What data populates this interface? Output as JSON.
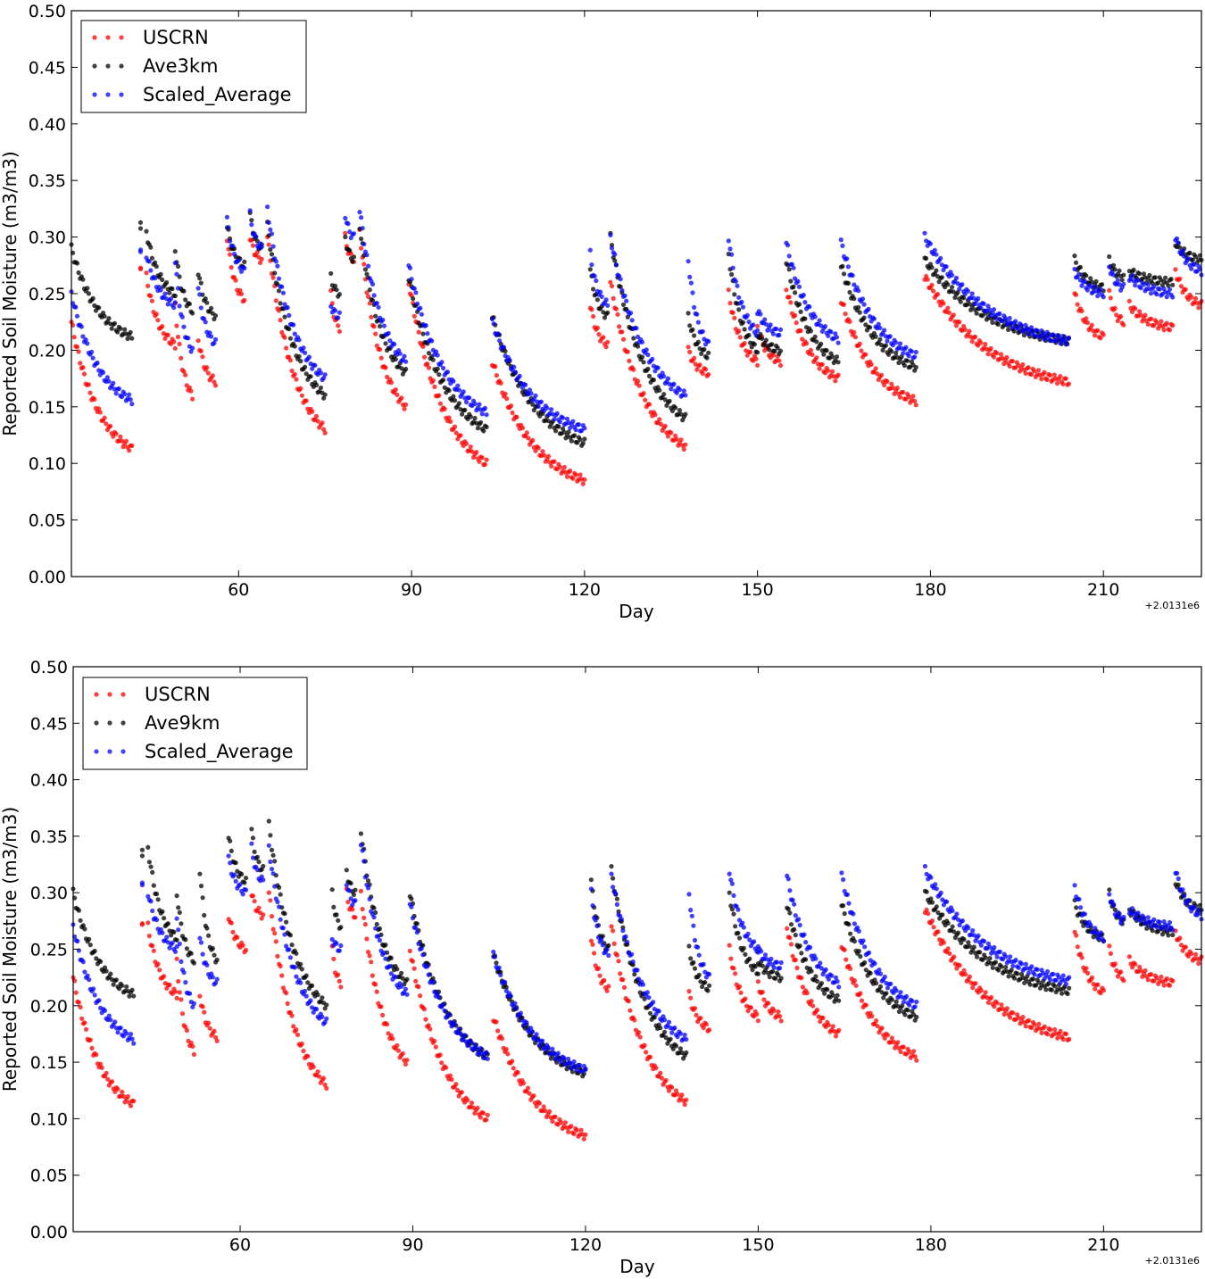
{
  "chart_data": [
    {
      "type": "scatter",
      "xlabel": "Day",
      "ylabel": "Reported Soil Moisture (m3/m3)",
      "x_offset_label": "+2.0131e6",
      "xlim": [
        31,
        227
      ],
      "ylim": [
        0.0,
        0.5
      ],
      "x_ticks": [
        60,
        90,
        120,
        150,
        180,
        210
      ],
      "x_tick_labels": [
        "60",
        "90",
        "120",
        "150",
        "180",
        "210"
      ],
      "y_ticks": [
        0.0,
        0.05,
        0.1,
        0.15,
        0.2,
        0.25,
        0.3,
        0.35,
        0.4,
        0.45,
        0.5
      ],
      "y_tick_labels": [
        "0.00",
        "0.05",
        "0.10",
        "0.15",
        "0.20",
        "0.25",
        "0.30",
        "0.35",
        "0.40",
        "0.45",
        "0.50"
      ],
      "grid": false,
      "legend_position": "top-left",
      "segments": [
        {
          "x": [
            31.0,
            41.5
          ],
          "USCRN": [
            0.225,
            0.113
          ],
          "Ave3km": [
            0.29,
            0.212
          ],
          "Scaled_Average": [
            0.25,
            0.156
          ]
        },
        {
          "x": [
            43.0,
            43.0
          ],
          "USCRN": [
            0.27,
            0.27
          ],
          "Ave3km": [
            0.31,
            0.31
          ],
          "Scaled_Average": [
            0.29,
            0.29
          ]
        },
        {
          "x": [
            44.0,
            49.0
          ],
          "USCRN": [
            0.265,
            0.205
          ],
          "Ave3km": [
            0.305,
            0.25
          ],
          "Scaled_Average": [
            0.285,
            0.24
          ]
        },
        {
          "x": [
            49.0,
            52.0
          ],
          "USCRN": [
            0.24,
            0.16
          ],
          "Ave3km": [
            0.29,
            0.235
          ],
          "Scaled_Average": [
            0.28,
            0.2
          ]
        },
        {
          "x": [
            53.0,
            56.0
          ],
          "USCRN": [
            0.21,
            0.172
          ],
          "Ave3km": [
            0.27,
            0.23
          ],
          "Scaled_Average": [
            0.255,
            0.206
          ]
        },
        {
          "x": [
            58.0,
            61.0
          ],
          "USCRN": [
            0.3,
            0.245
          ],
          "Ave3km": [
            0.31,
            0.275
          ],
          "Scaled_Average": [
            0.315,
            0.27
          ]
        },
        {
          "x": [
            62.0,
            64.0
          ],
          "USCRN": [
            0.3,
            0.28
          ],
          "Ave3km": [
            0.32,
            0.29
          ],
          "Scaled_Average": [
            0.32,
            0.29
          ]
        },
        {
          "x": [
            65.0,
            75.0
          ],
          "USCRN": [
            0.3,
            0.13
          ],
          "Ave3km": [
            0.31,
            0.16
          ],
          "Scaled_Average": [
            0.325,
            0.175
          ]
        },
        {
          "x": [
            76.0,
            77.5
          ],
          "USCRN": [
            0.25,
            0.22
          ],
          "Ave3km": [
            0.265,
            0.25
          ],
          "Scaled_Average": [
            0.24,
            0.23
          ]
        },
        {
          "x": [
            78.5,
            80.0
          ],
          "USCRN": [
            0.3,
            0.28
          ],
          "Ave3km": [
            0.3,
            0.28
          ],
          "Scaled_Average": [
            0.32,
            0.3
          ]
        },
        {
          "x": [
            81.0,
            89.0
          ],
          "USCRN": [
            0.305,
            0.15
          ],
          "Ave3km": [
            0.31,
            0.18
          ],
          "Scaled_Average": [
            0.325,
            0.19
          ]
        },
        {
          "x": [
            89.5,
            103.0
          ],
          "USCRN": [
            0.26,
            0.1
          ],
          "Ave3km": [
            0.265,
            0.13
          ],
          "Scaled_Average": [
            0.275,
            0.145
          ]
        },
        {
          "x": [
            104.0,
            120.0
          ],
          "USCRN": [
            0.19,
            0.085
          ],
          "Ave3km": [
            0.23,
            0.118
          ],
          "Scaled_Average": [
            0.225,
            0.13
          ]
        },
        {
          "x": [
            121.0,
            124.0
          ],
          "USCRN": [
            0.24,
            0.205
          ],
          "Ave3km": [
            0.27,
            0.23
          ],
          "Scaled_Average": [
            0.285,
            0.24
          ]
        },
        {
          "x": [
            124.5,
            137.5
          ],
          "USCRN": [
            0.26,
            0.115
          ],
          "Ave3km": [
            0.3,
            0.14
          ],
          "Scaled_Average": [
            0.3,
            0.16
          ]
        },
        {
          "x": [
            138.0,
            141.5
          ],
          "USCRN": [
            0.2,
            0.18
          ],
          "Ave3km": [
            0.23,
            0.195
          ],
          "Scaled_Average": [
            0.28,
            0.205
          ]
        },
        {
          "x": [
            145.0,
            150.0
          ],
          "USCRN": [
            0.25,
            0.19
          ],
          "Ave3km": [
            0.285,
            0.2
          ],
          "Scaled_Average": [
            0.3,
            0.215
          ]
        },
        {
          "x": [
            150.0,
            154.0
          ],
          "USCRN": [
            0.22,
            0.19
          ],
          "Ave3km": [
            0.215,
            0.2
          ],
          "Scaled_Average": [
            0.235,
            0.215
          ]
        },
        {
          "x": [
            155.0,
            164.0
          ],
          "USCRN": [
            0.255,
            0.175
          ],
          "Ave3km": [
            0.28,
            0.19
          ],
          "Scaled_Average": [
            0.295,
            0.21
          ]
        },
        {
          "x": [
            164.5,
            177.5
          ],
          "USCRN": [
            0.245,
            0.155
          ],
          "Ave3km": [
            0.275,
            0.185
          ],
          "Scaled_Average": [
            0.295,
            0.195
          ]
        },
        {
          "x": [
            179.0,
            204.0
          ],
          "USCRN": [
            0.265,
            0.172
          ],
          "Ave3km": [
            0.28,
            0.208
          ],
          "Scaled_Average": [
            0.3,
            0.208
          ]
        },
        {
          "x": [
            205.0,
            210.0
          ],
          "USCRN": [
            0.25,
            0.212
          ],
          "Ave3km": [
            0.28,
            0.255
          ],
          "Scaled_Average": [
            0.27,
            0.25
          ]
        },
        {
          "x": [
            211.0,
            213.5
          ],
          "USCRN": [
            0.25,
            0.225
          ],
          "Ave3km": [
            0.28,
            0.265
          ],
          "Scaled_Average": [
            0.275,
            0.255
          ]
        },
        {
          "x": [
            214.5,
            222.0
          ],
          "USCRN": [
            0.24,
            0.22
          ],
          "Ave3km": [
            0.27,
            0.26
          ],
          "Scaled_Average": [
            0.265,
            0.25
          ]
        },
        {
          "x": [
            222.5,
            227.0
          ],
          "USCRN": [
            0.27,
            0.24
          ],
          "Ave3km": [
            0.295,
            0.28
          ],
          "Scaled_Average": [
            0.3,
            0.27
          ]
        }
      ],
      "series": [
        {
          "name": "USCRN",
          "color": "#ff0000"
        },
        {
          "name": "Ave3km",
          "color": "#000000"
        },
        {
          "name": "Scaled_Average",
          "color": "#0000ff"
        }
      ]
    },
    {
      "type": "scatter",
      "xlabel": "Day",
      "ylabel": "Reported Soil Moisture (m3/m3)",
      "x_offset_label": "+2.0131e6",
      "xlim": [
        31,
        227
      ],
      "ylim": [
        0.0,
        0.5
      ],
      "x_ticks": [
        60,
        90,
        120,
        150,
        180,
        210
      ],
      "x_tick_labels": [
        "60",
        "90",
        "120",
        "150",
        "180",
        "210"
      ],
      "y_ticks": [
        0.0,
        0.05,
        0.1,
        0.15,
        0.2,
        0.25,
        0.3,
        0.35,
        0.4,
        0.45,
        0.5
      ],
      "y_tick_labels": [
        "0.00",
        "0.05",
        "0.10",
        "0.15",
        "0.20",
        "0.25",
        "0.30",
        "0.35",
        "0.40",
        "0.45",
        "0.50"
      ],
      "grid": false,
      "legend_position": "top-left",
      "segments": [
        {
          "x": [
            31.0,
            41.5
          ],
          "USCRN": [
            0.225,
            0.113
          ],
          "Ave9km": [
            0.3,
            0.21
          ],
          "Scaled_Average": [
            0.27,
            0.17
          ]
        },
        {
          "x": [
            43.0,
            43.0
          ],
          "USCRN": [
            0.27,
            0.27
          ],
          "Ave9km": [
            0.335,
            0.335
          ],
          "Scaled_Average": [
            0.31,
            0.31
          ]
        },
        {
          "x": [
            44.0,
            49.0
          ],
          "USCRN": [
            0.27,
            0.21
          ],
          "Ave9km": [
            0.34,
            0.26
          ],
          "Scaled_Average": [
            0.3,
            0.25
          ]
        },
        {
          "x": [
            49.0,
            52.0
          ],
          "USCRN": [
            0.24,
            0.16
          ],
          "Ave9km": [
            0.3,
            0.24
          ],
          "Scaled_Average": [
            0.28,
            0.2
          ]
        },
        {
          "x": [
            53.0,
            56.0
          ],
          "USCRN": [
            0.21,
            0.172
          ],
          "Ave9km": [
            0.32,
            0.24
          ],
          "Scaled_Average": [
            0.26,
            0.22
          ]
        },
        {
          "x": [
            58.0,
            61.0
          ],
          "USCRN": [
            0.28,
            0.25
          ],
          "Ave9km": [
            0.35,
            0.31
          ],
          "Scaled_Average": [
            0.33,
            0.3
          ]
        },
        {
          "x": [
            62.0,
            64.0
          ],
          "USCRN": [
            0.3,
            0.28
          ],
          "Ave9km": [
            0.355,
            0.32
          ],
          "Scaled_Average": [
            0.34,
            0.31
          ]
        },
        {
          "x": [
            65.0,
            75.0
          ],
          "USCRN": [
            0.3,
            0.13
          ],
          "Ave9km": [
            0.36,
            0.2
          ],
          "Scaled_Average": [
            0.34,
            0.185
          ]
        },
        {
          "x": [
            76.0,
            77.5
          ],
          "USCRN": [
            0.25,
            0.22
          ],
          "Ave9km": [
            0.3,
            0.27
          ],
          "Scaled_Average": [
            0.26,
            0.25
          ]
        },
        {
          "x": [
            78.5,
            80.0
          ],
          "USCRN": [
            0.3,
            0.28
          ],
          "Ave9km": [
            0.32,
            0.3
          ],
          "Scaled_Average": [
            0.31,
            0.29
          ]
        },
        {
          "x": [
            81.0,
            89.0
          ],
          "USCRN": [
            0.3,
            0.15
          ],
          "Ave9km": [
            0.355,
            0.22
          ],
          "Scaled_Average": [
            0.345,
            0.21
          ]
        },
        {
          "x": [
            89.5,
            103.0
          ],
          "USCRN": [
            0.25,
            0.1
          ],
          "Ave9km": [
            0.3,
            0.155
          ],
          "Scaled_Average": [
            0.29,
            0.155
          ]
        },
        {
          "x": [
            104.0,
            120.0
          ],
          "USCRN": [
            0.19,
            0.085
          ],
          "Ave9km": [
            0.245,
            0.14
          ],
          "Scaled_Average": [
            0.245,
            0.143
          ]
        },
        {
          "x": [
            121.0,
            124.0
          ],
          "USCRN": [
            0.26,
            0.215
          ],
          "Ave9km": [
            0.31,
            0.25
          ],
          "Scaled_Average": [
            0.3,
            0.245
          ]
        },
        {
          "x": [
            124.5,
            137.5
          ],
          "USCRN": [
            0.27,
            0.115
          ],
          "Ave9km": [
            0.32,
            0.155
          ],
          "Scaled_Average": [
            0.315,
            0.17
          ]
        },
        {
          "x": [
            138.0,
            141.5
          ],
          "USCRN": [
            0.21,
            0.18
          ],
          "Ave9km": [
            0.25,
            0.215
          ],
          "Scaled_Average": [
            0.3,
            0.225
          ]
        },
        {
          "x": [
            145.0,
            150.0
          ],
          "USCRN": [
            0.25,
            0.19
          ],
          "Ave9km": [
            0.3,
            0.23
          ],
          "Scaled_Average": [
            0.32,
            0.25
          ]
        },
        {
          "x": [
            150.0,
            154.0
          ],
          "USCRN": [
            0.22,
            0.19
          ],
          "Ave9km": [
            0.24,
            0.225
          ],
          "Scaled_Average": [
            0.25,
            0.235
          ]
        },
        {
          "x": [
            155.0,
            164.0
          ],
          "USCRN": [
            0.27,
            0.175
          ],
          "Ave9km": [
            0.29,
            0.205
          ],
          "Scaled_Average": [
            0.315,
            0.22
          ]
        },
        {
          "x": [
            164.5,
            177.5
          ],
          "USCRN": [
            0.255,
            0.155
          ],
          "Ave9km": [
            0.29,
            0.19
          ],
          "Scaled_Average": [
            0.315,
            0.2
          ]
        },
        {
          "x": [
            179.0,
            204.0
          ],
          "USCRN": [
            0.285,
            0.172
          ],
          "Ave9km": [
            0.3,
            0.213
          ],
          "Scaled_Average": [
            0.32,
            0.222
          ]
        },
        {
          "x": [
            205.0,
            210.0
          ],
          "USCRN": [
            0.265,
            0.212
          ],
          "Ave9km": [
            0.29,
            0.26
          ],
          "Scaled_Average": [
            0.305,
            0.26
          ]
        },
        {
          "x": [
            211.0,
            213.5
          ],
          "USCRN": [
            0.25,
            0.225
          ],
          "Ave9km": [
            0.3,
            0.275
          ],
          "Scaled_Average": [
            0.3,
            0.275
          ]
        },
        {
          "x": [
            214.5,
            222.0
          ],
          "USCRN": [
            0.24,
            0.22
          ],
          "Ave9km": [
            0.285,
            0.265
          ],
          "Scaled_Average": [
            0.285,
            0.27
          ]
        },
        {
          "x": [
            222.5,
            227.0
          ],
          "USCRN": [
            0.265,
            0.24
          ],
          "Ave9km": [
            0.31,
            0.285
          ],
          "Scaled_Average": [
            0.32,
            0.28
          ]
        }
      ],
      "series": [
        {
          "name": "USCRN",
          "color": "#ff0000"
        },
        {
          "name": "Ave9km",
          "color": "#000000"
        },
        {
          "name": "Scaled_Average",
          "color": "#0000ff"
        }
      ]
    }
  ]
}
